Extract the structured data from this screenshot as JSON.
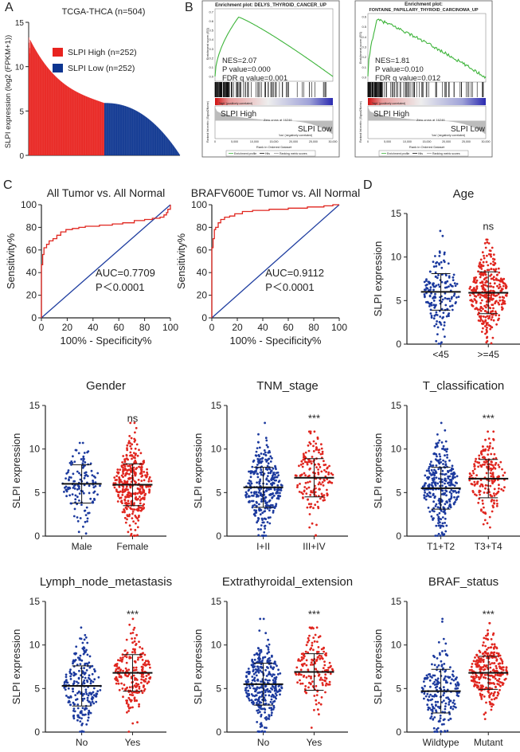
{
  "panels": {
    "A": {
      "letter": "A",
      "title": "TCGA-THCA (n=504)",
      "ylabel": "SLPI expression (log2 (FPKM+1))",
      "legend_high": "SLPI High (n=252)",
      "legend_low": "SLPI Low (n=252)",
      "colors": {
        "high": "#e8231f",
        "low": "#0d3590"
      }
    },
    "B": {
      "letter": "B",
      "plots": [
        {
          "title": "Enrichment plot: DELYS_THYROID_CANCER_UP",
          "nes": "NES=2.07",
          "p": "P value=0.000",
          "fdr": "FDR q value=0.001",
          "es_label": "Enrichment score (ES)",
          "rank_label": "Ranked list metric (Signal2Noise)",
          "x_label": "Rank in Ordered Dataset",
          "high_label": "SLPI High",
          "low_label": "SLPI Low",
          "pos_corr": "'high' (positively correlated)",
          "neg_corr": "'low' (negatively correlated)",
          "zero_cross": "Zero cross at 16246",
          "legend": [
            "Enrichment profile",
            "Hits",
            "Ranking metric scores"
          ],
          "y_ticks": [
            "0.7",
            "0.6",
            "0.5",
            "0.4",
            "0.3",
            "0.2",
            "0.1",
            "0.0"
          ],
          "x_ticks": [
            "0",
            "5,000",
            "10,000",
            "15,000",
            "20,000",
            "25,000",
            "30,000"
          ]
        },
        {
          "title": "Enrichment plot:\nFONTAINE_PAPILLARY_THYROID_CARCINOMA_UP",
          "title_l1": "Enrichment plot:",
          "title_l2": "FONTAINE_PAPILLARY_THYROID_CARCINOMA_UP",
          "nes": "NES=1.81",
          "p": "P value=0.010",
          "fdr": "FDR q value=0.012",
          "es_label": "Enrichment score (ES)",
          "rank_label": "Ranked list metric (Signal2Noise)",
          "x_label": "Rank in Ordered Dataset",
          "high_label": "SLPI High",
          "low_label": "SLPI Low",
          "pos_corr": "'high' (positively correlated)",
          "neg_corr": "'low' (negatively correlated)",
          "zero_cross": "Zero cross at 16246",
          "legend": [
            "Enrichment profile",
            "Hits",
            "Ranking metric scores"
          ],
          "y_ticks": [
            "0.6",
            "0.5",
            "0.4",
            "0.3",
            "0.2",
            "0.1",
            "0.0"
          ],
          "x_ticks": [
            "0",
            "5,000",
            "10,000",
            "15,000",
            "20,000",
            "25,000",
            "30,000"
          ]
        }
      ]
    },
    "C": {
      "letter": "C"
    },
    "D": {
      "letter": "D"
    }
  },
  "chart_data": [
    {
      "type": "bar",
      "title": "TCGA-THCA (n=504)",
      "ylabel": "SLPI expression (log2 (FPKM+1))",
      "ylim": [
        0,
        15
      ],
      "y_ticks": [
        0,
        5,
        10,
        15
      ],
      "series": [
        {
          "name": "SLPI High (n=252)",
          "n": 252,
          "max": 13.3,
          "min": 5.9
        },
        {
          "name": "SLPI Low (n=252)",
          "n": 252,
          "max": 5.9,
          "min": 0.05
        }
      ]
    },
    {
      "type": "line",
      "title": "All Tumor vs. All Normal",
      "xlabel": "100% - Specificity%",
      "ylabel": "Sensitivity%",
      "xlim": [
        0,
        100
      ],
      "ylim": [
        0,
        100
      ],
      "ticks": [
        0,
        20,
        40,
        60,
        80,
        100
      ],
      "auc": "AUC=0.7709",
      "p": "P＜0.0001",
      "roc": [
        [
          0,
          0
        ],
        [
          0,
          47
        ],
        [
          1,
          47
        ],
        [
          1,
          56
        ],
        [
          2,
          56
        ],
        [
          2,
          62
        ],
        [
          4,
          62
        ],
        [
          4,
          65
        ],
        [
          6,
          65
        ],
        [
          6,
          68
        ],
        [
          9,
          68
        ],
        [
          9,
          70
        ],
        [
          12,
          70
        ],
        [
          12,
          73
        ],
        [
          15,
          73
        ],
        [
          15,
          76
        ],
        [
          19,
          76
        ],
        [
          19,
          78
        ],
        [
          24,
          78
        ],
        [
          24,
          79
        ],
        [
          29,
          79
        ],
        [
          29,
          80
        ],
        [
          34,
          80
        ],
        [
          34,
          81
        ],
        [
          45,
          81
        ],
        [
          45,
          82
        ],
        [
          55,
          82
        ],
        [
          55,
          83
        ],
        [
          63,
          83
        ],
        [
          63,
          84
        ],
        [
          72,
          84
        ],
        [
          72,
          86
        ],
        [
          80,
          86
        ],
        [
          80,
          87
        ],
        [
          86,
          87
        ],
        [
          86,
          88
        ],
        [
          92,
          88
        ],
        [
          92,
          89
        ],
        [
          95,
          89
        ],
        [
          95,
          91
        ],
        [
          97,
          91
        ],
        [
          97,
          93
        ],
        [
          98,
          93
        ],
        [
          98,
          96
        ],
        [
          100,
          96
        ],
        [
          100,
          100
        ]
      ]
    },
    {
      "type": "line",
      "title": "BRAFV600E Tumor vs. All Normal",
      "xlabel": "100% - Specificity%",
      "ylabel": "Sensitivity%",
      "xlim": [
        0,
        100
      ],
      "ylim": [
        0,
        100
      ],
      "ticks": [
        0,
        20,
        40,
        60,
        80,
        100
      ],
      "auc": "AUC=0.9112",
      "p": "P＜0.0001",
      "roc": [
        [
          0,
          0
        ],
        [
          0,
          62
        ],
        [
          1,
          62
        ],
        [
          1,
          70
        ],
        [
          2,
          70
        ],
        [
          2,
          78
        ],
        [
          3,
          78
        ],
        [
          3,
          80
        ],
        [
          5,
          80
        ],
        [
          5,
          84
        ],
        [
          7,
          84
        ],
        [
          7,
          87
        ],
        [
          10,
          87
        ],
        [
          10,
          89
        ],
        [
          14,
          89
        ],
        [
          14,
          90
        ],
        [
          18,
          90
        ],
        [
          18,
          92
        ],
        [
          24,
          92
        ],
        [
          24,
          94
        ],
        [
          32,
          94
        ],
        [
          32,
          95
        ],
        [
          45,
          95
        ],
        [
          45,
          96
        ],
        [
          60,
          96
        ],
        [
          60,
          97
        ],
        [
          75,
          97
        ],
        [
          75,
          98
        ],
        [
          88,
          98
        ],
        [
          88,
          99
        ],
        [
          95,
          99
        ],
        [
          95,
          100
        ],
        [
          100,
          100
        ]
      ]
    },
    {
      "type": "scatter",
      "title": "Age",
      "ylabel": "SLPI expression",
      "ylim": [
        0,
        15
      ],
      "y_ticks": [
        0,
        5,
        10,
        15
      ],
      "categories": [
        "<45",
        ">=45"
      ],
      "significance": "ns",
      "groups": [
        {
          "name": "<45",
          "n": 170,
          "mean": 6.0,
          "sd": 2.1,
          "max": 13.0,
          "min": 0.2,
          "color": "#1c3a9e"
        },
        {
          "name": ">=45",
          "n": 330,
          "mean": 5.9,
          "sd": 2.4,
          "max": 12.0,
          "min": 0.2,
          "color": "#e0261f"
        }
      ]
    },
    {
      "type": "scatter",
      "title": "Gender",
      "ylabel": "SLPI expression",
      "ylim": [
        0,
        15
      ],
      "y_ticks": [
        0,
        5,
        10,
        15
      ],
      "categories": [
        "Male",
        "Female"
      ],
      "significance": "ns",
      "groups": [
        {
          "name": "Male",
          "n": 135,
          "mean": 6.0,
          "sd": 2.2,
          "max": 10.7,
          "min": 0.3,
          "color": "#1c3a9e"
        },
        {
          "name": "Female",
          "n": 365,
          "mean": 5.9,
          "sd": 2.4,
          "max": 13.0,
          "min": 0.1,
          "color": "#e0261f"
        }
      ]
    },
    {
      "type": "scatter",
      "title": "TNM_stage",
      "ylabel": "SLPI expression",
      "ylim": [
        0,
        15
      ],
      "y_ticks": [
        0,
        5,
        10,
        15
      ],
      "categories": [
        "I+II",
        "III+IV"
      ],
      "significance": "***",
      "groups": [
        {
          "name": "I+II",
          "n": 330,
          "mean": 5.6,
          "sd": 2.3,
          "max": 13.0,
          "min": 0.1,
          "color": "#1c3a9e"
        },
        {
          "name": "III+IV",
          "n": 170,
          "mean": 6.7,
          "sd": 2.2,
          "max": 12.0,
          "min": 1.0,
          "color": "#e0261f"
        }
      ]
    },
    {
      "type": "scatter",
      "title": "T_classification",
      "ylabel": "SLPI expression",
      "ylim": [
        0,
        15
      ],
      "y_ticks": [
        0,
        5,
        10,
        15
      ],
      "categories": [
        "T1+T2",
        "T3+T4"
      ],
      "significance": "***",
      "groups": [
        {
          "name": "T1+T2",
          "n": 310,
          "mean": 5.5,
          "sd": 2.4,
          "max": 13.0,
          "min": 0.1,
          "color": "#1c3a9e"
        },
        {
          "name": "T3+T4",
          "n": 190,
          "mean": 6.6,
          "sd": 2.2,
          "max": 12.0,
          "min": 1.0,
          "color": "#e0261f"
        }
      ]
    },
    {
      "type": "scatter",
      "title": "Lymph_node_metastasis",
      "ylabel": "SLPI expression",
      "ylim": [
        0,
        15
      ],
      "y_ticks": [
        0,
        5,
        10,
        15
      ],
      "categories": [
        "No",
        "Yes"
      ],
      "significance": "***",
      "groups": [
        {
          "name": "No",
          "n": 230,
          "mean": 5.3,
          "sd": 2.3,
          "max": 12.0,
          "min": 0.1,
          "color": "#1c3a9e"
        },
        {
          "name": "Yes",
          "n": 225,
          "mean": 6.8,
          "sd": 2.1,
          "max": 13.0,
          "min": 1.0,
          "color": "#e0261f"
        }
      ]
    },
    {
      "type": "scatter",
      "title": "Extrathyroidal_extension",
      "ylabel": "SLPI expression",
      "ylim": [
        0,
        15
      ],
      "y_ticks": [
        0,
        5,
        10,
        15
      ],
      "categories": [
        "No",
        "Yes"
      ],
      "significance": "***",
      "groups": [
        {
          "name": "No",
          "n": 330,
          "mean": 5.5,
          "sd": 2.4,
          "max": 13.0,
          "min": 0.1,
          "color": "#1c3a9e"
        },
        {
          "name": "Yes",
          "n": 160,
          "mean": 6.9,
          "sd": 2.1,
          "max": 12.0,
          "min": 0.5,
          "color": "#e0261f"
        }
      ]
    },
    {
      "type": "scatter",
      "title": "BRAF_status",
      "ylabel": "SLPI expression",
      "ylim": [
        0,
        15
      ],
      "y_ticks": [
        0,
        5,
        10,
        15
      ],
      "categories": [
        "Wildtype",
        "Mutant"
      ],
      "significance": "***",
      "groups": [
        {
          "name": "Wildtype",
          "n": 210,
          "mean": 4.7,
          "sd": 2.5,
          "max": 13.0,
          "min": 0.1,
          "color": "#1c3a9e"
        },
        {
          "name": "Mutant",
          "n": 290,
          "mean": 6.8,
          "sd": 1.9,
          "max": 12.5,
          "min": 1.5,
          "color": "#e0261f"
        }
      ]
    }
  ]
}
